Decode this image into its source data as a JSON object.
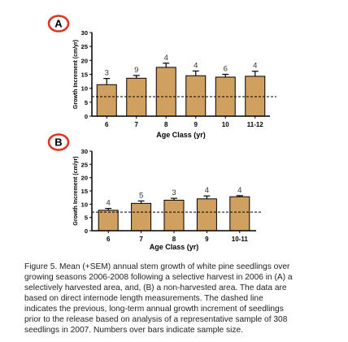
{
  "chart_data": [
    {
      "type": "bar",
      "panel_label": "A",
      "categories": [
        "6",
        "7",
        "8",
        "9",
        "10",
        "11-12"
      ],
      "values": [
        11.3,
        13.6,
        17.5,
        14.5,
        14.0,
        14.3
      ],
      "errors": [
        2.2,
        1.0,
        1.5,
        1.7,
        1.0,
        1.8
      ],
      "sample_sizes": [
        "3",
        "9",
        "4",
        "4",
        "6",
        "4"
      ],
      "xlabel": "Age Class (yr)",
      "ylabel": "Growth Increment (cm/yr)",
      "yticks": [
        "0",
        "5",
        "10",
        "15",
        "20",
        "25",
        "30"
      ],
      "ylim": [
        0,
        30
      ],
      "reference_line": 7,
      "bar_color": "#d0a060"
    },
    {
      "type": "bar",
      "panel_label": "B",
      "categories": [
        "6",
        "7",
        "8",
        "9",
        "10-11"
      ],
      "values": [
        7.7,
        10.3,
        11.5,
        12.0,
        12.8
      ],
      "errors": [
        0.7,
        0.9,
        0.7,
        1.1,
        0.4
      ],
      "sample_sizes": [
        "4",
        "5",
        "3",
        "4",
        "4"
      ],
      "xlabel": "Age Class (yr)",
      "ylabel": "Growth Increment (cm/yr)",
      "yticks": [
        "0",
        "5",
        "10",
        "15",
        "20",
        "25",
        "30"
      ],
      "ylim": [
        0,
        30
      ],
      "reference_line": 7,
      "bar_color": "#d0a060"
    }
  ],
  "panel_circle_color": "#e0301e",
  "caption_lines": [
    "Figure 5. Mean (+SEM) annual stem growth of white pine seedlings over",
    "growing seasons 2006-2008 following a selective harvest in 2006 in (A) a",
    "selectively harvested area, and, (B) a non-harvested area. The data are",
    "based on direct internode length measurements. The dashed line",
    "indicates the previous, long-term annual growth increment of seedlings",
    "prior to the release based on analysis of a representative sample of 308",
    "seedlings in 2007. Numbers over bars indicate sample size."
  ]
}
